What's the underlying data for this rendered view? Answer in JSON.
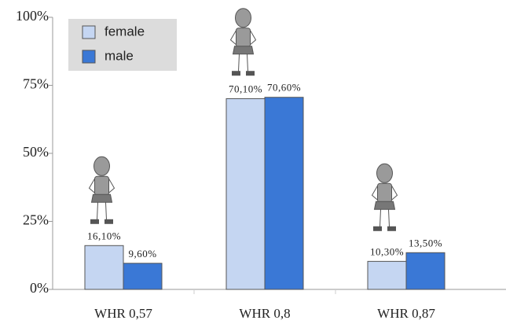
{
  "chart_data": {
    "type": "bar",
    "categories": [
      "WHR 0,57",
      "WHR 0,8",
      "WHR 0,87"
    ],
    "series": [
      {
        "name": "female",
        "color": "#c5d6f2",
        "values": [
          16.1,
          70.1,
          10.3
        ],
        "value_labels": [
          "16,10%",
          "70,10%",
          "10,30%"
        ]
      },
      {
        "name": "male",
        "color": "#3a78d6",
        "values": [
          9.6,
          70.6,
          13.5
        ],
        "value_labels": [
          "9,60%",
          "70,60%",
          "13,50%"
        ]
      }
    ],
    "ylim": [
      0,
      100
    ],
    "yticks": [
      {
        "value": 0,
        "label": "0%"
      },
      {
        "value": 25,
        "label": "25%"
      },
      {
        "value": 50,
        "label": "50%"
      },
      {
        "value": 75,
        "label": "75%"
      },
      {
        "value": 100,
        "label": "100%"
      }
    ],
    "legend": "upper left"
  }
}
